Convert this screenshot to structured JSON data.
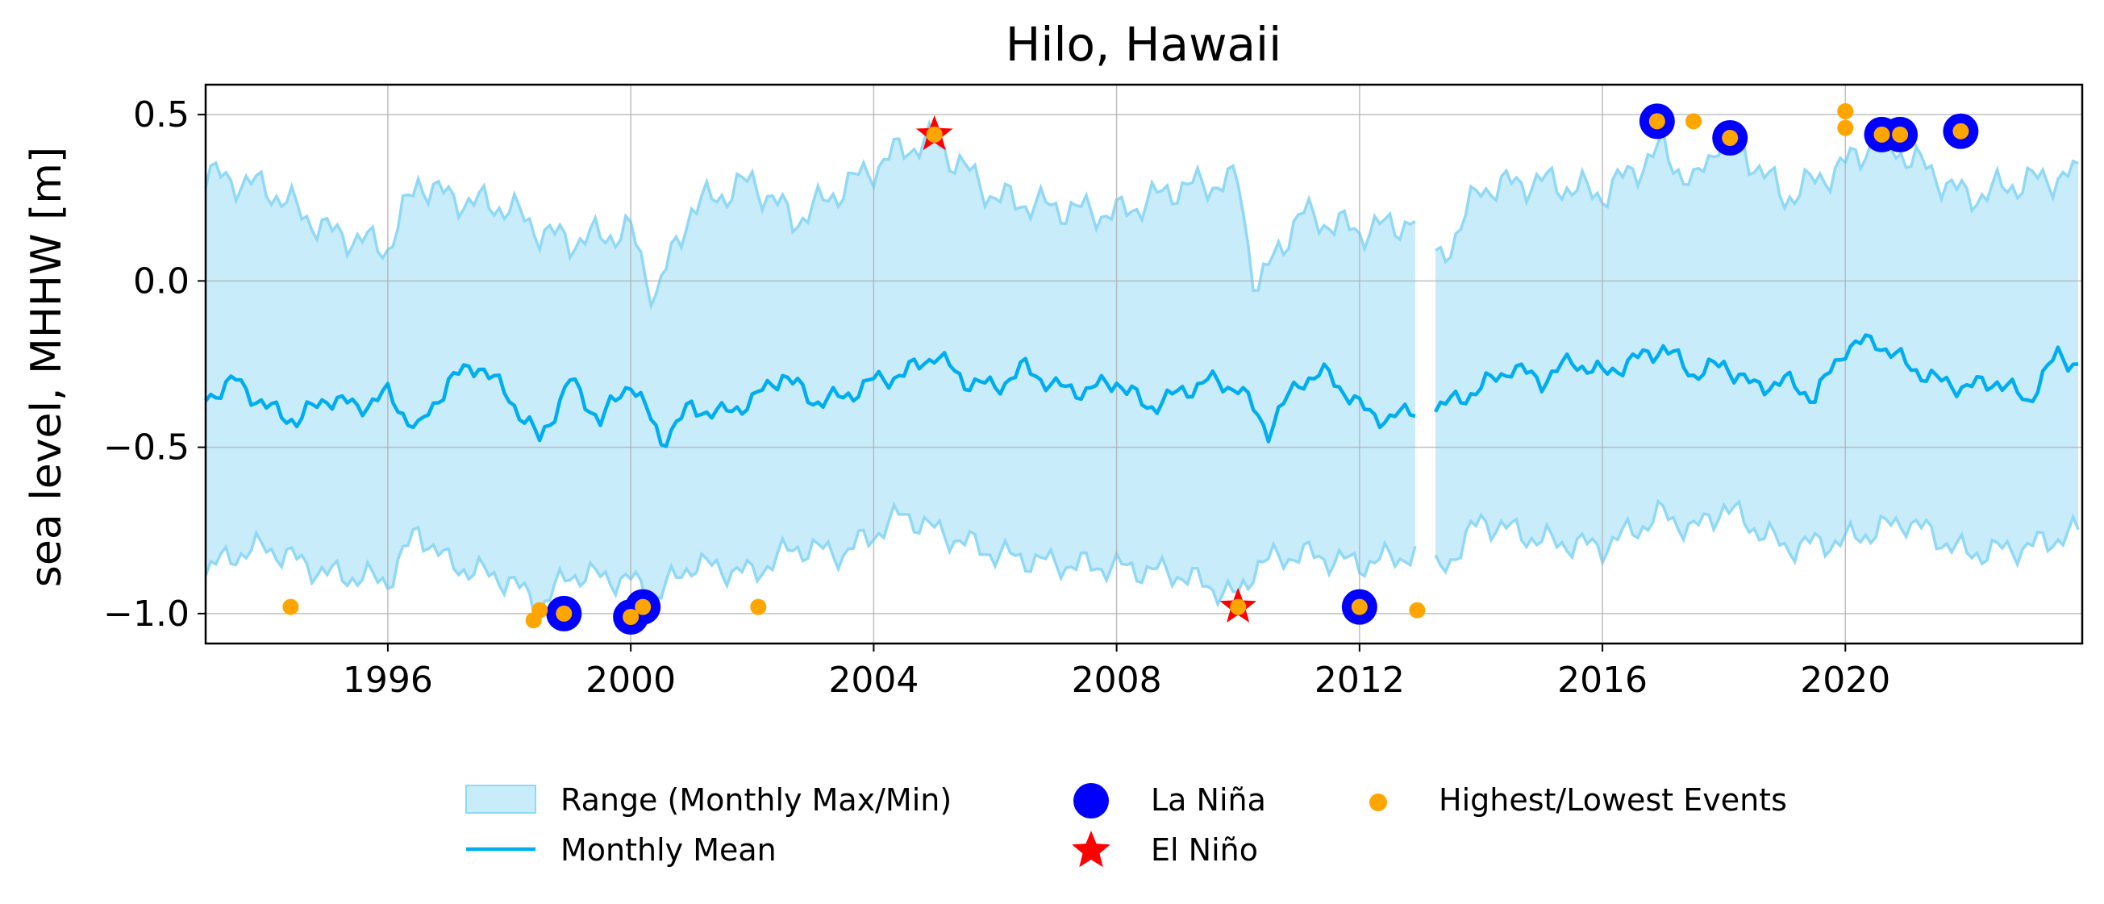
{
  "chart_data": {
    "type": "line",
    "title": "Hilo, Hawaii",
    "xlabel": "",
    "ylabel": "sea level, MHHW [m]",
    "xlim": [
      1993.0,
      2023.9
    ],
    "ylim": [
      -1.09,
      0.59
    ],
    "xticks": [
      {
        "value": 1996,
        "label": "1996"
      },
      {
        "value": 2000,
        "label": "2000"
      },
      {
        "value": 2004,
        "label": "2004"
      },
      {
        "value": 2008,
        "label": "2008"
      },
      {
        "value": 2012,
        "label": "2012"
      },
      {
        "value": 2016,
        "label": "2016"
      },
      {
        "value": 2020,
        "label": "2020"
      }
    ],
    "yticks": [
      {
        "value": 0.5,
        "label": "0.5"
      },
      {
        "value": 0.0,
        "label": "0.0"
      },
      {
        "value": -0.5,
        "label": "−0.5"
      },
      {
        "value": -1.0,
        "label": "−1.0"
      }
    ],
    "grid": true,
    "legend_position": "bottom",
    "gap": [
      2012.95,
      2013.2
    ],
    "range_anchors": {
      "x": [
        1993.0,
        1993.5,
        1994.0,
        1995.0,
        1996.0,
        1996.5,
        1997.0,
        1998.0,
        1998.5,
        1999.0,
        2000.0,
        2000.4,
        2001.0,
        2002.0,
        2002.7,
        2003.5,
        2004.5,
        2005.0,
        2006.0,
        2007.0,
        2008.0,
        2009.0,
        2010.0,
        2010.3,
        2011.0,
        2012.0,
        2012.9,
        2013.3,
        2014.0,
        2015.0,
        2016.0,
        2017.0,
        2017.5,
        2018.0,
        2019.0,
        2020.0,
        2020.5,
        2021.0,
        2022.0,
        2023.0,
        2023.9
      ],
      "max": [
        0.32,
        0.3,
        0.28,
        0.15,
        0.1,
        0.3,
        0.25,
        0.22,
        0.15,
        0.12,
        0.15,
        -0.05,
        0.22,
        0.3,
        0.18,
        0.28,
        0.4,
        0.42,
        0.25,
        0.22,
        0.2,
        0.28,
        0.3,
        -0.03,
        0.2,
        0.15,
        0.18,
        0.05,
        0.28,
        0.3,
        0.26,
        0.4,
        0.28,
        0.46,
        0.25,
        0.35,
        0.42,
        0.38,
        0.25,
        0.3,
        0.32
      ],
      "min": [
        -0.87,
        -0.82,
        -0.8,
        -0.88,
        -0.9,
        -0.75,
        -0.85,
        -0.9,
        -0.98,
        -0.88,
        -0.9,
        -0.95,
        -0.85,
        -0.88,
        -0.8,
        -0.82,
        -0.7,
        -0.75,
        -0.82,
        -0.85,
        -0.86,
        -0.88,
        -0.95,
        -0.85,
        -0.82,
        -0.85,
        -0.82,
        -0.88,
        -0.72,
        -0.78,
        -0.8,
        -0.7,
        -0.75,
        -0.68,
        -0.8,
        -0.78,
        -0.75,
        -0.72,
        -0.82,
        -0.8,
        -0.75
      ]
    },
    "series": [
      {
        "name": "Monthly Mean",
        "x": [
          1993.0,
          1993.5,
          1994.0,
          1994.5,
          1995.0,
          1995.5,
          1996.0,
          1996.5,
          1997.0,
          1997.5,
          1998.0,
          1998.5,
          1999.0,
          1999.5,
          2000.0,
          2000.5,
          2001.0,
          2001.5,
          2002.0,
          2002.5,
          2003.0,
          2003.5,
          2004.0,
          2004.5,
          2005.0,
          2005.5,
          2006.0,
          2006.5,
          2007.0,
          2007.5,
          2008.0,
          2008.5,
          2009.0,
          2009.5,
          2010.0,
          2010.5,
          2011.0,
          2011.5,
          2012.0,
          2012.5,
          2012.9,
          2013.3,
          2013.7,
          2014.0,
          2014.5,
          2015.0,
          2015.5,
          2016.0,
          2016.5,
          2017.0,
          2017.5,
          2018.0,
          2018.5,
          2019.0,
          2019.5,
          2020.0,
          2020.5,
          2021.0,
          2021.5,
          2022.0,
          2022.5,
          2023.0,
          2023.5,
          2023.9
        ],
        "y": [
          -0.35,
          -0.3,
          -0.38,
          -0.42,
          -0.35,
          -0.38,
          -0.34,
          -0.45,
          -0.3,
          -0.25,
          -0.35,
          -0.48,
          -0.3,
          -0.42,
          -0.3,
          -0.48,
          -0.38,
          -0.4,
          -0.36,
          -0.28,
          -0.36,
          -0.35,
          -0.3,
          -0.28,
          -0.22,
          -0.3,
          -0.32,
          -0.26,
          -0.32,
          -0.33,
          -0.3,
          -0.38,
          -0.34,
          -0.3,
          -0.32,
          -0.45,
          -0.3,
          -0.28,
          -0.38,
          -0.42,
          -0.38,
          -0.38,
          -0.35,
          -0.32,
          -0.26,
          -0.3,
          -0.24,
          -0.28,
          -0.24,
          -0.2,
          -0.28,
          -0.25,
          -0.32,
          -0.3,
          -0.35,
          -0.2,
          -0.18,
          -0.25,
          -0.3,
          -0.32,
          -0.3,
          -0.36,
          -0.22,
          -0.26
        ]
      }
    ],
    "la_nina_points": [
      {
        "x": 1998.9,
        "y": -1.0
      },
      {
        "x": 2000.0,
        "y": -1.01
      },
      {
        "x": 2000.2,
        "y": -0.98
      },
      {
        "x": 2012.0,
        "y": -0.98
      },
      {
        "x": 2016.9,
        "y": 0.48
      },
      {
        "x": 2018.1,
        "y": 0.43
      },
      {
        "x": 2020.6,
        "y": 0.44
      },
      {
        "x": 2020.9,
        "y": 0.44
      },
      {
        "x": 2021.9,
        "y": 0.45
      }
    ],
    "el_nino_points": [
      {
        "x": 2005.0,
        "y": 0.44
      },
      {
        "x": 2010.0,
        "y": -0.98
      }
    ],
    "event_points": [
      {
        "x": 1994.4,
        "y": -0.98
      },
      {
        "x": 1998.4,
        "y": -1.02
      },
      {
        "x": 1998.5,
        "y": -0.99
      },
      {
        "x": 1998.9,
        "y": -1.0
      },
      {
        "x": 2000.0,
        "y": -1.01
      },
      {
        "x": 2000.2,
        "y": -0.98
      },
      {
        "x": 2002.1,
        "y": -0.98
      },
      {
        "x": 2005.0,
        "y": 0.44
      },
      {
        "x": 2010.0,
        "y": -0.98
      },
      {
        "x": 2012.0,
        "y": -0.98
      },
      {
        "x": 2012.95,
        "y": -0.99
      },
      {
        "x": 2016.9,
        "y": 0.48
      },
      {
        "x": 2017.5,
        "y": 0.48
      },
      {
        "x": 2018.1,
        "y": 0.43
      },
      {
        "x": 2020.0,
        "y": 0.51
      },
      {
        "x": 2020.0,
        "y": 0.46
      },
      {
        "x": 2020.6,
        "y": 0.44
      },
      {
        "x": 2020.9,
        "y": 0.44
      },
      {
        "x": 2021.9,
        "y": 0.45
      }
    ],
    "legend": {
      "range_label": "Range (Monthly Max/Min)",
      "mean_label": "Monthly Mean",
      "la_nina_label": "La Niña",
      "el_nino_label": "El Niño",
      "events_label": "Highest/Lowest Events"
    },
    "colors": {
      "range_fill": "#c9ecfb",
      "range_edge": "#8fd9f6",
      "mean_line": "#00aeef",
      "la_nina": "#0000ff",
      "el_nino": "#ff0000",
      "events": "#ffa500",
      "grid": "#b0b0b0"
    }
  }
}
